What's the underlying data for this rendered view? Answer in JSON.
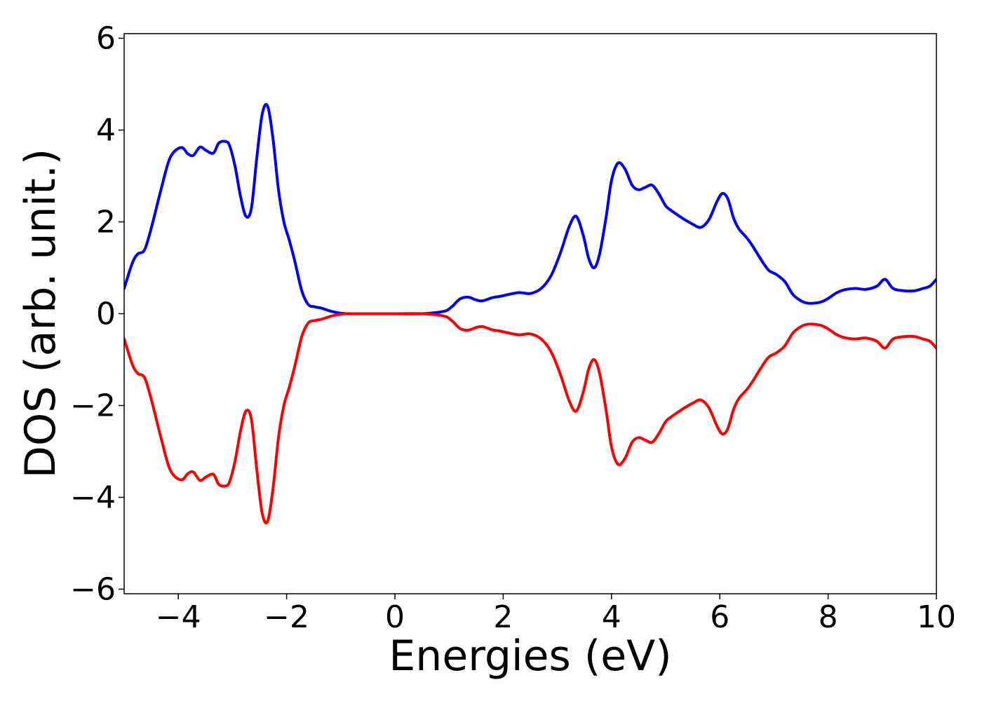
{
  "chart_data": {
    "type": "line",
    "title": "",
    "xlabel": "Energies (eV)",
    "ylabel": "DOS (arb. unit.)",
    "xlim": [
      -5,
      10
    ],
    "ylim": [
      -6.1,
      6.1
    ],
    "x_ticks": [
      -4,
      -2,
      0,
      2,
      4,
      6,
      8,
      10
    ],
    "y_ticks": [
      -6,
      -4,
      -2,
      0,
      2,
      4,
      6
    ],
    "x_tick_labels": [
      "−4",
      "−2",
      "0",
      "2",
      "4",
      "6",
      "8",
      "10"
    ],
    "y_tick_labels": [
      "−6",
      "−4",
      "−2",
      "0",
      "2",
      "4",
      "6"
    ],
    "grid": false,
    "legend": "none",
    "series": [
      {
        "color": "#0000ff",
        "x": [
          -5.0,
          -4.85,
          -4.75,
          -4.62,
          -4.48,
          -4.32,
          -4.15,
          -3.95,
          -3.82,
          -3.72,
          -3.6,
          -3.48,
          -3.35,
          -3.25,
          -3.12,
          -3.05,
          -2.95,
          -2.85,
          -2.75,
          -2.65,
          -2.55,
          -2.45,
          -2.35,
          -2.25,
          -2.15,
          -2.05,
          -1.95,
          -1.85,
          -1.72,
          -1.6,
          -1.48,
          -1.35,
          -1.2,
          -1.05,
          -0.9,
          -0.75,
          -0.55,
          -0.3,
          0.0,
          0.5,
          0.9,
          1.05,
          1.2,
          1.35,
          1.5,
          1.62,
          1.8,
          1.95,
          2.1,
          2.3,
          2.5,
          2.7,
          2.88,
          3.05,
          3.22,
          3.35,
          3.48,
          3.58,
          3.68,
          3.78,
          3.9,
          4.0,
          4.12,
          4.25,
          4.38,
          4.5,
          4.62,
          4.75,
          4.88,
          5.0,
          5.1,
          5.22,
          5.35,
          5.5,
          5.65,
          5.8,
          5.95,
          6.05,
          6.15,
          6.25,
          6.35,
          6.5,
          6.62,
          6.75,
          6.9,
          7.05,
          7.2,
          7.35,
          7.5,
          7.62,
          7.75,
          7.88,
          8.0,
          8.15,
          8.3,
          8.5,
          8.7,
          8.9,
          9.05,
          9.2,
          9.4,
          9.6,
          9.75,
          9.88,
          10.0
        ],
        "values": [
          0.55,
          1.1,
          1.3,
          1.4,
          1.95,
          2.7,
          3.4,
          3.62,
          3.48,
          3.45,
          3.63,
          3.55,
          3.5,
          3.72,
          3.75,
          3.65,
          3.2,
          2.55,
          2.12,
          2.3,
          3.4,
          4.35,
          4.52,
          3.8,
          2.7,
          2.0,
          1.6,
          1.15,
          0.5,
          0.2,
          0.15,
          0.12,
          0.06,
          0.02,
          0.0,
          0.0,
          0.0,
          0.0,
          0.0,
          0.0,
          0.05,
          0.15,
          0.32,
          0.36,
          0.3,
          0.28,
          0.35,
          0.38,
          0.42,
          0.46,
          0.44,
          0.55,
          0.82,
          1.3,
          1.9,
          2.12,
          1.7,
          1.2,
          1.0,
          1.3,
          2.1,
          2.9,
          3.28,
          3.15,
          2.8,
          2.7,
          2.75,
          2.8,
          2.6,
          2.35,
          2.25,
          2.15,
          2.05,
          1.95,
          1.88,
          2.05,
          2.45,
          2.62,
          2.5,
          2.1,
          1.85,
          1.65,
          1.45,
          1.2,
          0.95,
          0.85,
          0.7,
          0.42,
          0.28,
          0.23,
          0.23,
          0.26,
          0.33,
          0.45,
          0.52,
          0.55,
          0.53,
          0.6,
          0.75,
          0.55,
          0.5,
          0.5,
          0.55,
          0.6,
          0.75
        ]
      },
      {
        "color": "#ff0000",
        "x": [
          -5.0,
          -4.85,
          -4.75,
          -4.62,
          -4.48,
          -4.32,
          -4.15,
          -3.95,
          -3.82,
          -3.72,
          -3.6,
          -3.48,
          -3.35,
          -3.25,
          -3.12,
          -3.05,
          -2.95,
          -2.85,
          -2.75,
          -2.65,
          -2.55,
          -2.45,
          -2.35,
          -2.25,
          -2.15,
          -2.05,
          -1.95,
          -1.85,
          -1.72,
          -1.6,
          -1.48,
          -1.35,
          -1.2,
          -1.05,
          -0.9,
          -0.75,
          -0.55,
          -0.3,
          0.0,
          0.5,
          0.9,
          1.05,
          1.2,
          1.35,
          1.5,
          1.62,
          1.8,
          1.95,
          2.1,
          2.3,
          2.5,
          2.7,
          2.88,
          3.05,
          3.22,
          3.35,
          3.48,
          3.58,
          3.68,
          3.78,
          3.9,
          4.0,
          4.12,
          4.25,
          4.38,
          4.5,
          4.62,
          4.75,
          4.88,
          5.0,
          5.1,
          5.22,
          5.35,
          5.5,
          5.65,
          5.8,
          5.95,
          6.05,
          6.15,
          6.25,
          6.35,
          6.5,
          6.62,
          6.75,
          6.9,
          7.05,
          7.2,
          7.35,
          7.5,
          7.62,
          7.75,
          7.88,
          8.0,
          8.15,
          8.3,
          8.5,
          8.7,
          8.9,
          9.05,
          9.2,
          9.4,
          9.6,
          9.75,
          9.88,
          10.0
        ],
        "values": [
          -0.55,
          -1.1,
          -1.3,
          -1.4,
          -1.95,
          -2.7,
          -3.4,
          -3.62,
          -3.48,
          -3.45,
          -3.63,
          -3.55,
          -3.5,
          -3.72,
          -3.75,
          -3.65,
          -3.2,
          -2.55,
          -2.12,
          -2.3,
          -3.4,
          -4.35,
          -4.52,
          -3.8,
          -2.7,
          -2.0,
          -1.6,
          -1.15,
          -0.5,
          -0.2,
          -0.15,
          -0.12,
          -0.06,
          -0.02,
          -0.0,
          -0.0,
          -0.0,
          -0.0,
          -0.0,
          -0.0,
          -0.05,
          -0.15,
          -0.32,
          -0.36,
          -0.3,
          -0.28,
          -0.35,
          -0.38,
          -0.42,
          -0.46,
          -0.44,
          -0.55,
          -0.82,
          -1.3,
          -1.9,
          -2.12,
          -1.7,
          -1.2,
          -1.0,
          -1.3,
          -2.1,
          -2.9,
          -3.28,
          -3.15,
          -2.8,
          -2.7,
          -2.75,
          -2.8,
          -2.6,
          -2.35,
          -2.25,
          -2.15,
          -2.05,
          -1.95,
          -1.88,
          -2.05,
          -2.45,
          -2.62,
          -2.5,
          -2.1,
          -1.85,
          -1.65,
          -1.45,
          -1.2,
          -0.95,
          -0.85,
          -0.7,
          -0.42,
          -0.28,
          -0.23,
          -0.23,
          -0.26,
          -0.33,
          -0.45,
          -0.52,
          -0.55,
          -0.53,
          -0.6,
          -0.75,
          -0.55,
          -0.5,
          -0.5,
          -0.55,
          -0.6,
          -0.75
        ]
      }
    ]
  }
}
